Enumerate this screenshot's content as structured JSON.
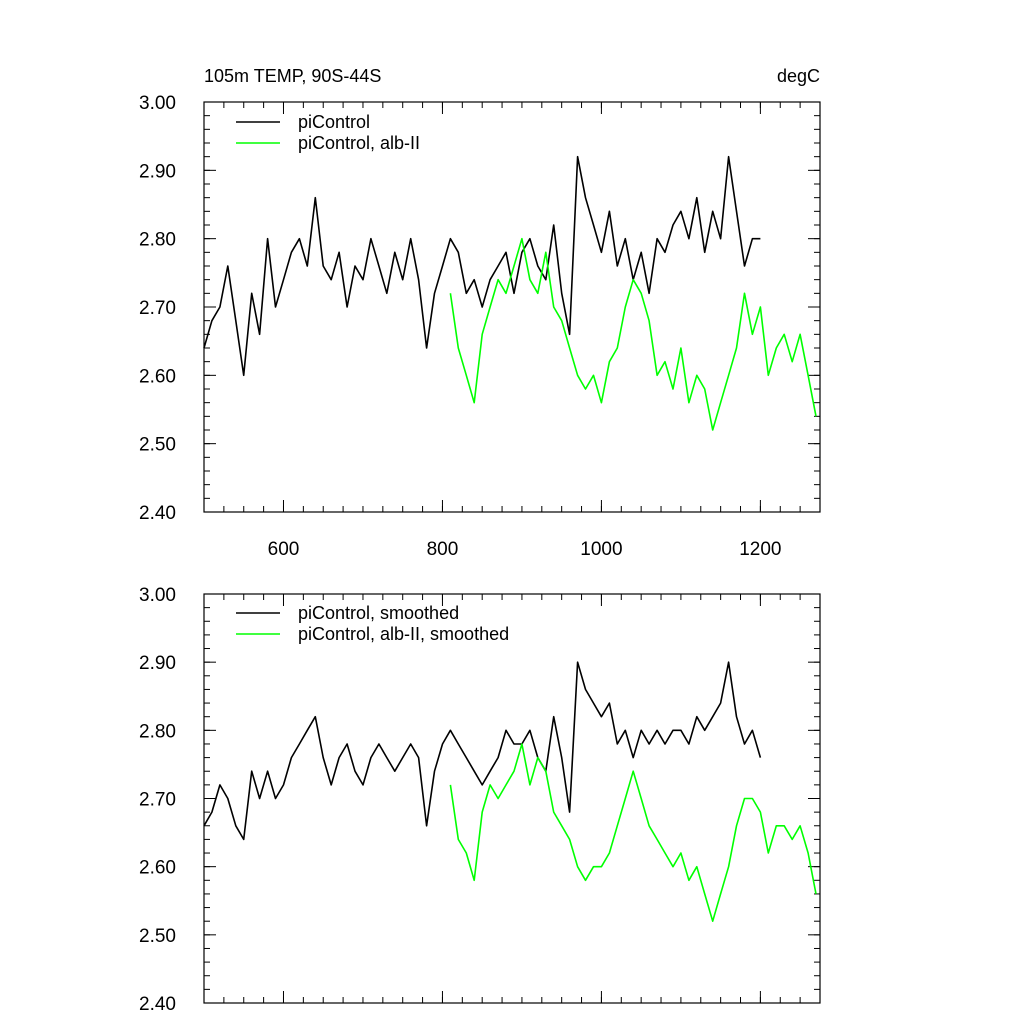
{
  "chart_data": [
    {
      "type": "line",
      "title": "105m TEMP, 90S-44S",
      "units": "degC",
      "xlim": [
        500,
        1275
      ],
      "ylim": [
        2.4,
        3.0
      ],
      "x_ticks": [
        "600",
        "800",
        "1000",
        "1200"
      ],
      "y_ticks": [
        "2.40",
        "2.50",
        "2.60",
        "2.70",
        "2.80",
        "2.90",
        "3.00"
      ],
      "show_x_labels": true,
      "series": [
        {
          "name": "piControl",
          "color": "#000000",
          "x": [
            500,
            510,
            520,
            530,
            540,
            550,
            560,
            570,
            580,
            590,
            600,
            610,
            620,
            630,
            640,
            650,
            660,
            670,
            680,
            690,
            700,
            710,
            720,
            730,
            740,
            750,
            760,
            770,
            780,
            790,
            800,
            810,
            820,
            830,
            840,
            850,
            860,
            870,
            880,
            890,
            900,
            910,
            920,
            930,
            940,
            950,
            960,
            970,
            980,
            990,
            1000,
            1010,
            1020,
            1030,
            1040,
            1050,
            1060,
            1070,
            1080,
            1090,
            1100,
            1110,
            1120,
            1130,
            1140,
            1150,
            1160,
            1170,
            1180,
            1190,
            1200
          ],
          "values": [
            2.64,
            2.68,
            2.7,
            2.76,
            2.68,
            2.6,
            2.72,
            2.66,
            2.8,
            2.7,
            2.74,
            2.78,
            2.8,
            2.76,
            2.86,
            2.76,
            2.74,
            2.78,
            2.7,
            2.76,
            2.74,
            2.8,
            2.76,
            2.72,
            2.78,
            2.74,
            2.8,
            2.74,
            2.64,
            2.72,
            2.76,
            2.8,
            2.78,
            2.72,
            2.74,
            2.7,
            2.74,
            2.76,
            2.78,
            2.72,
            2.78,
            2.8,
            2.76,
            2.74,
            2.82,
            2.72,
            2.66,
            2.92,
            2.86,
            2.82,
            2.78,
            2.84,
            2.76,
            2.8,
            2.74,
            2.78,
            2.72,
            2.8,
            2.78,
            2.82,
            2.84,
            2.8,
            2.86,
            2.78,
            2.84,
            2.8,
            2.92,
            2.84,
            2.76,
            2.8,
            2.8
          ]
        },
        {
          "name": "piControl, alb-II",
          "color": "#00ff00",
          "x": [
            810,
            820,
            830,
            840,
            850,
            860,
            870,
            880,
            890,
            900,
            910,
            920,
            930,
            940,
            950,
            960,
            970,
            980,
            990,
            1000,
            1010,
            1020,
            1030,
            1040,
            1050,
            1060,
            1070,
            1080,
            1090,
            1100,
            1110,
            1120,
            1130,
            1140,
            1150,
            1160,
            1170,
            1180,
            1190,
            1200,
            1210,
            1220,
            1230,
            1240,
            1250,
            1260,
            1270
          ],
          "values": [
            2.72,
            2.64,
            2.6,
            2.56,
            2.66,
            2.7,
            2.74,
            2.72,
            2.76,
            2.8,
            2.74,
            2.72,
            2.78,
            2.7,
            2.68,
            2.64,
            2.6,
            2.58,
            2.6,
            2.56,
            2.62,
            2.64,
            2.7,
            2.74,
            2.72,
            2.68,
            2.6,
            2.62,
            2.58,
            2.64,
            2.56,
            2.6,
            2.58,
            2.52,
            2.56,
            2.6,
            2.64,
            2.72,
            2.66,
            2.7,
            2.6,
            2.64,
            2.66,
            2.62,
            2.66,
            2.6,
            2.54
          ]
        }
      ]
    },
    {
      "type": "line",
      "title": "",
      "units": "",
      "xlim": [
        500,
        1275
      ],
      "ylim": [
        2.4,
        3.0
      ],
      "x_ticks": [
        "600",
        "800",
        "1000",
        "1200"
      ],
      "y_ticks": [
        "2.40",
        "2.50",
        "2.60",
        "2.70",
        "2.80",
        "2.90",
        "3.00"
      ],
      "show_x_labels": false,
      "series": [
        {
          "name": "piControl, smoothed",
          "color": "#000000",
          "x": [
            500,
            510,
            520,
            530,
            540,
            550,
            560,
            570,
            580,
            590,
            600,
            610,
            620,
            630,
            640,
            650,
            660,
            670,
            680,
            690,
            700,
            710,
            720,
            730,
            740,
            750,
            760,
            770,
            780,
            790,
            800,
            810,
            820,
            830,
            840,
            850,
            860,
            870,
            880,
            890,
            900,
            910,
            920,
            930,
            940,
            950,
            960,
            970,
            980,
            990,
            1000,
            1010,
            1020,
            1030,
            1040,
            1050,
            1060,
            1070,
            1080,
            1090,
            1100,
            1110,
            1120,
            1130,
            1140,
            1150,
            1160,
            1170,
            1180,
            1190,
            1200
          ],
          "values": [
            2.66,
            2.68,
            2.72,
            2.7,
            2.66,
            2.64,
            2.74,
            2.7,
            2.74,
            2.7,
            2.72,
            2.76,
            2.78,
            2.8,
            2.82,
            2.76,
            2.72,
            2.76,
            2.78,
            2.74,
            2.72,
            2.76,
            2.78,
            2.76,
            2.74,
            2.76,
            2.78,
            2.76,
            2.66,
            2.74,
            2.78,
            2.8,
            2.78,
            2.76,
            2.74,
            2.72,
            2.74,
            2.76,
            2.8,
            2.78,
            2.78,
            2.8,
            2.76,
            2.74,
            2.82,
            2.76,
            2.68,
            2.9,
            2.86,
            2.84,
            2.82,
            2.84,
            2.78,
            2.8,
            2.76,
            2.8,
            2.78,
            2.8,
            2.78,
            2.8,
            2.8,
            2.78,
            2.82,
            2.8,
            2.82,
            2.84,
            2.9,
            2.82,
            2.78,
            2.8,
            2.76
          ]
        },
        {
          "name": "piControl, alb-II, smoothed",
          "color": "#00ff00",
          "x": [
            810,
            820,
            830,
            840,
            850,
            860,
            870,
            880,
            890,
            900,
            910,
            920,
            930,
            940,
            950,
            960,
            970,
            980,
            990,
            1000,
            1010,
            1020,
            1030,
            1040,
            1050,
            1060,
            1070,
            1080,
            1090,
            1100,
            1110,
            1120,
            1130,
            1140,
            1150,
            1160,
            1170,
            1180,
            1190,
            1200,
            1210,
            1220,
            1230,
            1240,
            1250,
            1260,
            1270
          ],
          "values": [
            2.72,
            2.64,
            2.62,
            2.58,
            2.68,
            2.72,
            2.7,
            2.72,
            2.74,
            2.78,
            2.72,
            2.76,
            2.74,
            2.68,
            2.66,
            2.64,
            2.6,
            2.58,
            2.6,
            2.6,
            2.62,
            2.66,
            2.7,
            2.74,
            2.7,
            2.66,
            2.64,
            2.62,
            2.6,
            2.62,
            2.58,
            2.6,
            2.56,
            2.52,
            2.56,
            2.6,
            2.66,
            2.7,
            2.7,
            2.68,
            2.62,
            2.66,
            2.66,
            2.64,
            2.66,
            2.62,
            2.56
          ]
        }
      ]
    }
  ]
}
